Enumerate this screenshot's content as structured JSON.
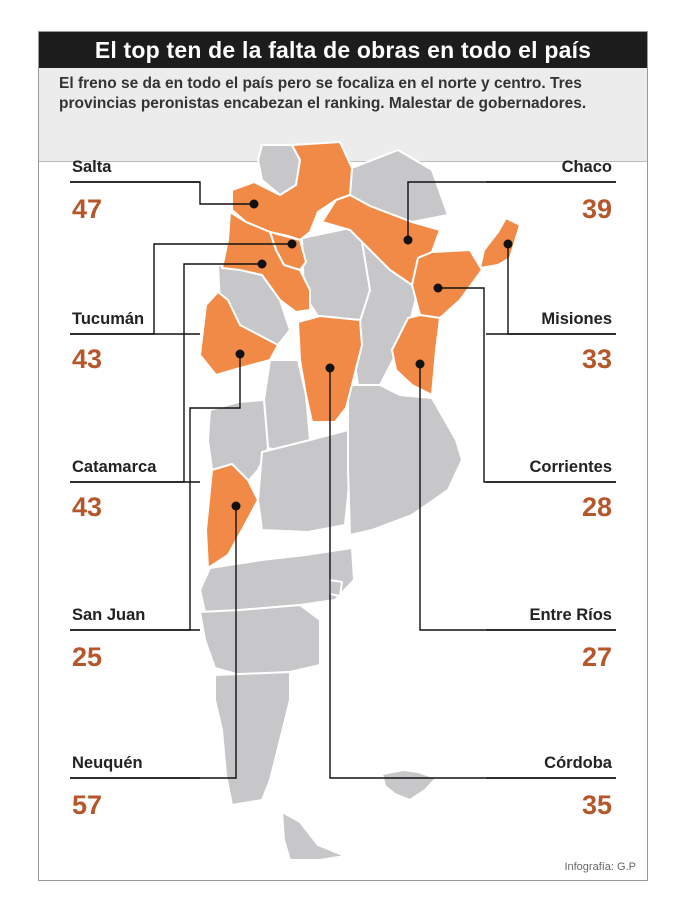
{
  "title": "El top ten de la falta de obras en todo el país",
  "subtitle": {
    "line1": "El freno se da en todo el país pero se focaliza en el norte y centro. Tres",
    "line2": "provincias peronistas encabezan el ranking. Malestar de gobernadores."
  },
  "credit": "Infografía: G.P",
  "colors": {
    "highlight": "#f08a46",
    "base": "#c7c7c9",
    "border": "#ffffff",
    "value_text": "#b5572a",
    "title_bg": "#1c1c1c"
  },
  "provinces": [
    {
      "name": "Salta",
      "value": "47",
      "side": "left"
    },
    {
      "name": "Tucumán",
      "value": "43",
      "side": "left"
    },
    {
      "name": "Catamarca",
      "value": "43",
      "side": "left"
    },
    {
      "name": "San Juan",
      "value": "25",
      "side": "left"
    },
    {
      "name": "Neuquén",
      "value": "57",
      "side": "left"
    },
    {
      "name": "Chaco",
      "value": "39",
      "side": "right"
    },
    {
      "name": "Misiones",
      "value": "33",
      "side": "right"
    },
    {
      "name": "Corrientes",
      "value": "28",
      "side": "right"
    },
    {
      "name": "Entre Ríos",
      "value": "27",
      "side": "right"
    },
    {
      "name": "Córdoba",
      "value": "35",
      "side": "right"
    }
  ]
}
